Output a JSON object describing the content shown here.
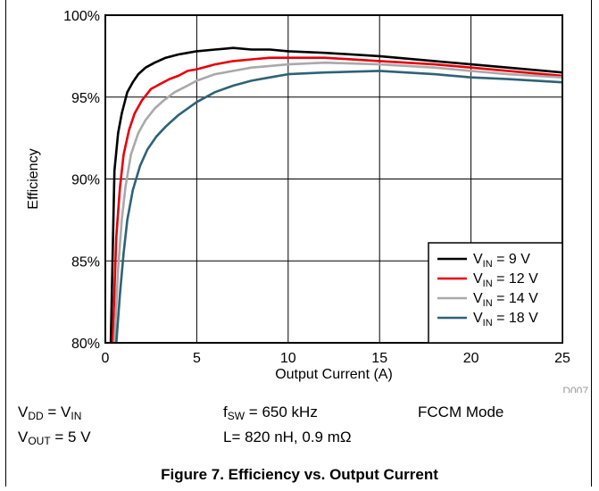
{
  "chart_data": {
    "type": "line",
    "xlabel": "Output Current (A)",
    "ylabel": "Efficiency",
    "xlim": [
      0,
      25
    ],
    "ylim": [
      80,
      100
    ],
    "x_ticks": [
      "0",
      "5",
      "10",
      "15",
      "20",
      "25"
    ],
    "y_ticks": [
      "80%",
      "85%",
      "90%",
      "95%",
      "100%"
    ],
    "grid": true,
    "legend_position": "bottom-right",
    "code_label": "D007",
    "series": [
      {
        "name": "V_IN = 9 V",
        "sub": "IN",
        "rest": " = 9 V",
        "color": "#000000",
        "x": [
          0.3,
          0.5,
          0.7,
          0.9,
          1.2,
          1.5,
          1.8,
          2.2,
          2.7,
          3.3,
          4.0,
          4.5,
          5.0,
          6.0,
          7.0,
          8.0,
          9.0,
          10.0,
          12.0,
          15.0,
          18.0,
          20.0,
          22.0,
          25.0
        ],
        "y": [
          80.0,
          90.5,
          92.8,
          94.0,
          95.3,
          95.9,
          96.4,
          96.8,
          97.1,
          97.4,
          97.6,
          97.7,
          97.8,
          97.9,
          98.0,
          97.9,
          97.9,
          97.8,
          97.7,
          97.5,
          97.2,
          97.0,
          96.8,
          96.5
        ]
      },
      {
        "name": "V_IN = 12 V",
        "sub": "IN",
        "rest": " = 12 V",
        "color": "#e8000b",
        "x": [
          0.4,
          0.6,
          0.8,
          1.0,
          1.3,
          1.6,
          2.0,
          2.5,
          3.0,
          3.5,
          4.0,
          4.5,
          5.0,
          6.0,
          7.0,
          8.0,
          9.0,
          10.0,
          12.0,
          15.0,
          18.0,
          20.0,
          22.0,
          25.0
        ],
        "y": [
          80.0,
          86.5,
          89.5,
          91.5,
          93.0,
          94.0,
          94.8,
          95.5,
          95.8,
          96.1,
          96.3,
          96.6,
          96.7,
          97.0,
          97.2,
          97.3,
          97.4,
          97.4,
          97.4,
          97.2,
          97.0,
          96.8,
          96.6,
          96.3
        ]
      },
      {
        "name": "V_IN = 14 V",
        "sub": "IN",
        "rest": " = 14 V",
        "color": "#a9a9a9",
        "x": [
          0.5,
          0.7,
          0.9,
          1.1,
          1.4,
          1.8,
          2.2,
          2.7,
          3.2,
          3.8,
          4.5,
          5.0,
          6.0,
          7.0,
          8.0,
          9.0,
          10.0,
          12.0,
          15.0,
          18.0,
          20.0,
          22.0,
          25.0
        ],
        "y": [
          80.0,
          84.5,
          87.5,
          89.5,
          91.5,
          92.8,
          93.6,
          94.3,
          94.8,
          95.3,
          95.7,
          96.0,
          96.4,
          96.6,
          96.8,
          96.9,
          97.0,
          97.1,
          97.0,
          96.8,
          96.6,
          96.4,
          96.2
        ]
      },
      {
        "name": "V_IN = 18 V",
        "sub": "IN",
        "rest": " = 18 V",
        "color": "#2e6277",
        "x": [
          0.6,
          0.8,
          1.0,
          1.2,
          1.5,
          1.9,
          2.3,
          2.8,
          3.3,
          4.0,
          4.5,
          5.0,
          6.0,
          7.0,
          8.0,
          9.0,
          10.0,
          12.0,
          15.0,
          18.0,
          20.0,
          22.0,
          25.0
        ],
        "y": [
          80.0,
          83.0,
          85.5,
          87.5,
          89.3,
          90.8,
          91.8,
          92.6,
          93.2,
          93.9,
          94.3,
          94.7,
          95.3,
          95.7,
          96.0,
          96.2,
          96.4,
          96.5,
          96.6,
          96.4,
          96.2,
          96.1,
          95.9
        ]
      }
    ]
  },
  "conditions": {
    "vdd_pre": "V",
    "vdd_sub": "DD",
    "vdd_mid": " = V",
    "vdd_sub2": "IN",
    "vout_pre": "V",
    "vout_sub": "OUT",
    "vout_rest": " = 5 V",
    "fsw_pre": "f",
    "fsw_sub": "SW",
    "fsw_rest": " = 650 kHz",
    "inductor": "L= 820 nH, 0.9 mΩ",
    "mode": "FCCM Mode"
  },
  "caption": "Figure 7. Efficiency vs. Output Current"
}
